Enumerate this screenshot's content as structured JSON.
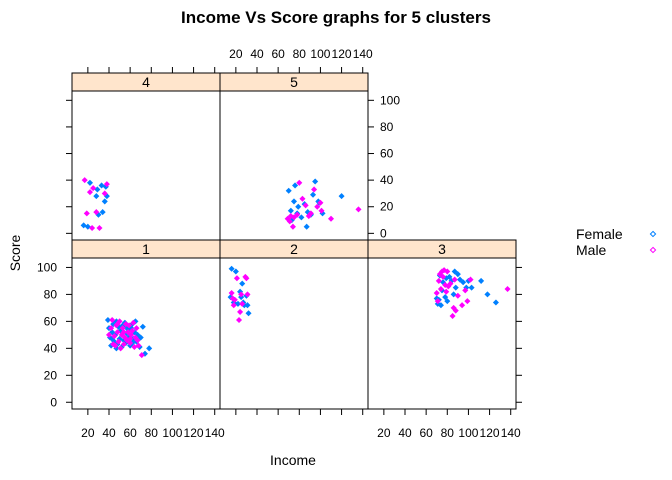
{
  "chart_data": {
    "type": "scatter",
    "title": "Income Vs Score graphs for 5 clusters",
    "xlabel": "Income",
    "ylabel": "Score",
    "xlim": [
      5,
      145
    ],
    "ylim": [
      -5,
      107
    ],
    "x_ticks": [
      20,
      40,
      60,
      80,
      100,
      120,
      140
    ],
    "y_ticks": [
      0,
      20,
      40,
      60,
      80,
      100
    ],
    "legend_position": "right",
    "colors": {
      "Female": "#0080ff",
      "Male": "#ff00ff"
    },
    "series": [
      {
        "name": "Female"
      },
      {
        "name": "Male"
      }
    ],
    "panels": [
      {
        "label": "4",
        "points": {
          "Female": [
            [
              16,
              6
            ],
            [
              20,
              5
            ],
            [
              28,
              28
            ],
            [
              30,
              14
            ],
            [
              34,
              16
            ],
            [
              36,
              24
            ],
            [
              38,
              28
            ],
            [
              37,
              35
            ],
            [
              29,
              33
            ],
            [
              33,
              36
            ],
            [
              22,
              38
            ]
          ],
          "Male": [
            [
              17,
              40
            ],
            [
              19,
              15
            ],
            [
              22,
              31
            ],
            [
              25,
              34
            ],
            [
              24,
              4
            ],
            [
              31,
              4
            ],
            [
              28,
              16
            ],
            [
              38,
              37
            ],
            [
              36,
              30
            ]
          ]
        }
      },
      {
        "label": "5",
        "points": {
          "Female": [
            [
              70,
              32
            ],
            [
              72,
              17
            ],
            [
              73,
              10
            ],
            [
              75,
              24
            ],
            [
              76,
              36
            ],
            [
              78,
              15
            ],
            [
              79,
              20
            ],
            [
              82,
              12
            ],
            [
              85,
              22
            ],
            [
              87,
              5
            ],
            [
              88,
              16
            ],
            [
              91,
              14
            ],
            [
              93,
              29
            ],
            [
              95,
              39
            ],
            [
              98,
              24
            ],
            [
              99,
              23
            ],
            [
              102,
              15
            ],
            [
              120,
              28
            ]
          ],
          "Male": [
            [
              69,
              11
            ],
            [
              71,
              9
            ],
            [
              72,
              13
            ],
            [
              74,
              5
            ],
            [
              75,
              12
            ],
            [
              78,
              14
            ],
            [
              80,
              38
            ],
            [
              83,
              26
            ],
            [
              86,
              21
            ],
            [
              89,
              13
            ],
            [
              91,
              15
            ],
            [
              94,
              33
            ],
            [
              97,
              20
            ],
            [
              100,
              23
            ],
            [
              101,
              17
            ],
            [
              110,
              11
            ],
            [
              136,
              18
            ]
          ]
        }
      },
      {
        "label": "1",
        "points": {
          "Female": [
            [
              39,
              61
            ],
            [
              40,
              55
            ],
            [
              41,
              48
            ],
            [
              42,
              42
            ],
            [
              43,
              52
            ],
            [
              44,
              58
            ],
            [
              45,
              45
            ],
            [
              46,
              50
            ],
            [
              47,
              60
            ],
            [
              48,
              43
            ],
            [
              49,
              56
            ],
            [
              50,
              47
            ],
            [
              51,
              53
            ],
            [
              52,
              41
            ],
            [
              53,
              57
            ],
            [
              54,
              46
            ],
            [
              55,
              59
            ],
            [
              56,
              44
            ],
            [
              57,
              51
            ],
            [
              58,
              54
            ],
            [
              59,
              48
            ],
            [
              60,
              42
            ],
            [
              61,
              55
            ],
            [
              62,
              58
            ],
            [
              63,
              47
            ],
            [
              64,
              52
            ],
            [
              65,
              60
            ],
            [
              66,
              45
            ],
            [
              67,
              50
            ],
            [
              69,
              41
            ],
            [
              70,
              48
            ],
            [
              72,
              56
            ],
            [
              74,
              36
            ],
            [
              78,
              40
            ],
            [
              62,
              44
            ],
            [
              56,
              56
            ],
            [
              47,
              40
            ],
            [
              43,
              47
            ]
          ],
          "Male": [
            [
              40,
              50
            ],
            [
              42,
              55
            ],
            [
              43,
              61
            ],
            [
              45,
              49
            ],
            [
              46,
              42
            ],
            [
              47,
              57
            ],
            [
              48,
              52
            ],
            [
              49,
              45
            ],
            [
              50,
              60
            ],
            [
              51,
              40
            ],
            [
              52,
              50
            ],
            [
              53,
              55
            ],
            [
              54,
              43
            ],
            [
              55,
              48
            ],
            [
              56,
              58
            ],
            [
              57,
              46
            ],
            [
              58,
              52
            ],
            [
              59,
              57
            ],
            [
              60,
              44
            ],
            [
              61,
              50
            ],
            [
              62,
              53
            ],
            [
              63,
              59
            ],
            [
              64,
              41
            ],
            [
              65,
              48
            ],
            [
              66,
              55
            ],
            [
              67,
              46
            ],
            [
              68,
              42
            ],
            [
              71,
              35
            ],
            [
              60,
              47
            ],
            [
              54,
              52
            ],
            [
              48,
              58
            ],
            [
              44,
              43
            ]
          ]
        }
      },
      {
        "label": "2",
        "points": {
          "Female": [
            [
              15,
              78
            ],
            [
              16,
              99
            ],
            [
              18,
              74
            ],
            [
              19,
              73
            ],
            [
              20,
              97
            ],
            [
              22,
              73
            ],
            [
              24,
              82
            ],
            [
              25,
              78
            ],
            [
              26,
              88
            ],
            [
              27,
              74
            ],
            [
              28,
              72
            ],
            [
              30,
              79
            ],
            [
              31,
              72
            ],
            [
              32,
              66
            ]
          ],
          "Male": [
            [
              16,
              81
            ],
            [
              17,
              77
            ],
            [
              18,
              72
            ],
            [
              19,
              76
            ],
            [
              21,
              92
            ],
            [
              23,
              61
            ],
            [
              24,
              67
            ],
            [
              25,
              80
            ],
            [
              26,
              73
            ],
            [
              29,
              93
            ],
            [
              30,
              92
            ],
            [
              31,
              80
            ]
          ]
        }
      },
      {
        "label": "3",
        "points": {
          "Female": [
            [
              70,
              77
            ],
            [
              71,
              73
            ],
            [
              72,
              76
            ],
            [
              73,
              94
            ],
            [
              74,
              72
            ],
            [
              75,
              83
            ],
            [
              76,
              89
            ],
            [
              78,
              78
            ],
            [
              79,
              92
            ],
            [
              80,
              75
            ],
            [
              82,
              93
            ],
            [
              84,
              90
            ],
            [
              86,
              80
            ],
            [
              87,
              97
            ],
            [
              88,
              85
            ],
            [
              90,
              95
            ],
            [
              92,
              91
            ],
            [
              95,
              89
            ],
            [
              98,
              85
            ],
            [
              100,
              90
            ],
            [
              103,
              85
            ],
            [
              112,
              90
            ],
            [
              118,
              80
            ],
            [
              126,
              74
            ]
          ],
          "Male": [
            [
              70,
              81
            ],
            [
              71,
              75
            ],
            [
              72,
              90
            ],
            [
              73,
              95
            ],
            [
              74,
              84
            ],
            [
              75,
              97
            ],
            [
              76,
              93
            ],
            [
              77,
              98
            ],
            [
              78,
              87
            ],
            [
              79,
              82
            ],
            [
              80,
              97
            ],
            [
              81,
              86
            ],
            [
              83,
              88
            ],
            [
              85,
              64
            ],
            [
              86,
              70
            ],
            [
              87,
              91
            ],
            [
              88,
              68
            ],
            [
              90,
              79
            ],
            [
              94,
              72
            ],
            [
              97,
              83
            ],
            [
              99,
              75
            ],
            [
              102,
              91
            ],
            [
              137,
              84
            ]
          ]
        }
      }
    ]
  }
}
